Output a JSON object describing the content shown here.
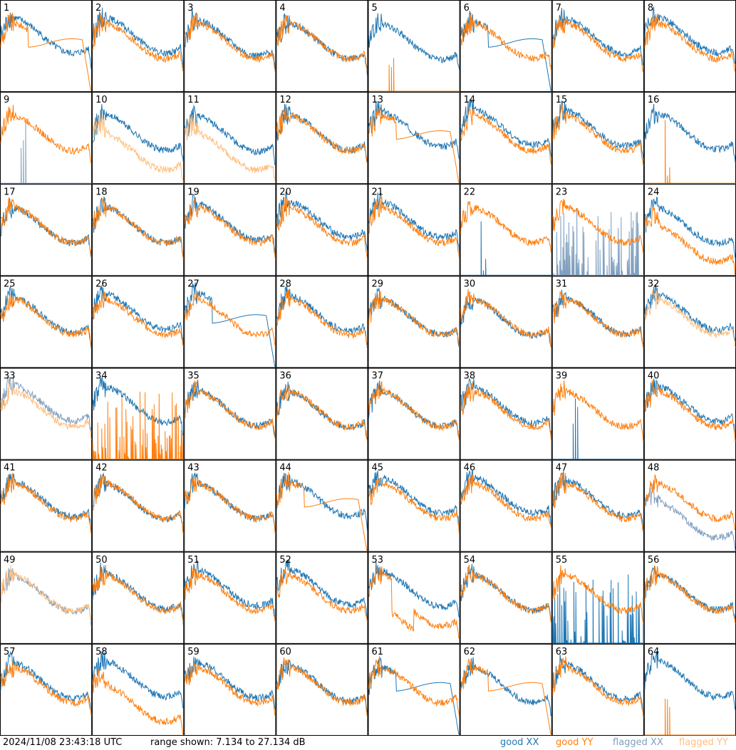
{
  "chart_data": {
    "type": "line",
    "layout": "small-multiples 8x8",
    "panels": [
      "1",
      "2",
      "3",
      "4",
      "5",
      "6",
      "7",
      "8",
      "9",
      "10",
      "11",
      "12",
      "13",
      "14",
      "15",
      "16",
      "17",
      "18",
      "19",
      "20",
      "21",
      "22",
      "23",
      "24",
      "25",
      "26",
      "27",
      "28",
      "29",
      "30",
      "31",
      "32",
      "33",
      "34",
      "35",
      "36",
      "37",
      "38",
      "39",
      "40",
      "41",
      "42",
      "43",
      "44",
      "45",
      "46",
      "47",
      "48",
      "49",
      "50",
      "51",
      "52",
      "53",
      "54",
      "55",
      "56",
      "57",
      "58",
      "59",
      "60",
      "61",
      "62",
      "63",
      "64"
    ],
    "ylim_db": [
      7.134,
      27.134
    ],
    "legend_placement": "bottom-right",
    "series": [
      {
        "name": "good XX",
        "color": "#1f77b4"
      },
      {
        "name": "good YY",
        "color": "#ff7f0e"
      },
      {
        "name": "flagged XX",
        "color": "#7f9fbf"
      },
      {
        "name": "flagged YY",
        "color": "#ffbf80"
      }
    ],
    "panel_styles": {
      "1": "yy_dropout",
      "5": "yy_spikes",
      "6": "xx_dropout",
      "9": "flagged_xx_spikes",
      "10": "flagged_yy_low",
      "11": "flagged_yy_low",
      "13": "yy_dropout",
      "16": "yy_spikes",
      "22": "xx_spikes",
      "23": "flagged_xx_spikes_dense",
      "24": "yy_low",
      "27": "xx_dropout",
      "32": "flagged_yy_noisy",
      "33": "flagged_both",
      "34": "yy_spikes_dense",
      "39": "xx_spikes",
      "44": "yy_dropout",
      "48": "flagged_xx_mid",
      "49": "flagged_both",
      "53": "yy_dip",
      "55": "xx_spikes_dense",
      "58": "yy_low",
      "61": "xx_dropout",
      "62": "yy_dropout",
      "64": "yy_spikes"
    }
  },
  "footer": {
    "timestamp": "2024/11/08 23:43:18 UTC",
    "range": "range shown: 7.134 to 27.134 dB",
    "legend": [
      "good XX",
      "good YY",
      "flagged XX",
      "flagged YY"
    ]
  }
}
